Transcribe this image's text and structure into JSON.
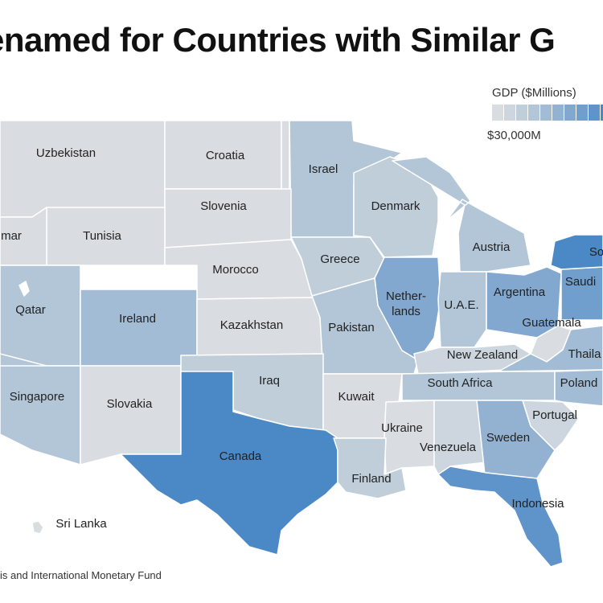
{
  "title": "enamed for Countries with Similar G",
  "legend": {
    "title": "GDP ($Millions)",
    "min_label": "$30,000M",
    "colors": [
      "#d9dde2",
      "#cdd6de",
      "#c0ceda",
      "#b2c6d8",
      "#a3bcd5",
      "#93b2d2",
      "#82a8d0",
      "#709ecd",
      "#5e94ca",
      "#4a88c6"
    ]
  },
  "source": "is and International Monetary Fund",
  "regions": [
    {
      "id": "wa",
      "country": "Uzbekistan",
      "level": 0
    },
    {
      "id": "mt",
      "country": "Croatia",
      "level": 0
    },
    {
      "id": "nd",
      "country": "",
      "level": 0
    },
    {
      "id": "mn",
      "country": "Israel",
      "level": 3
    },
    {
      "id": "wi",
      "country": "Denmark",
      "level": 2
    },
    {
      "id": "mi",
      "country": "Austria",
      "level": 3
    },
    {
      "id": "sd",
      "country": "Slovenia",
      "level": 0
    },
    {
      "id": "wy",
      "country": "Tunisia",
      "level": 0
    },
    {
      "id": "or",
      "country": "mar",
      "level": 0
    },
    {
      "id": "id",
      "country": "",
      "level": 0
    },
    {
      "id": "ne",
      "country": "Morocco",
      "level": 0
    },
    {
      "id": "ia",
      "country": "Greece",
      "level": 2
    },
    {
      "id": "il",
      "country": "Nether-\nlands",
      "level": 6
    },
    {
      "id": "in",
      "country": "U.A.E.",
      "level": 3
    },
    {
      "id": "oh",
      "country": "Argentina",
      "level": 6
    },
    {
      "id": "pa",
      "country": "Saudi",
      "level": 7
    },
    {
      "id": "ny",
      "country": "So",
      "level": 9
    },
    {
      "id": "nv",
      "country": "Qatar",
      "level": 3
    },
    {
      "id": "ca",
      "country": "",
      "level": 3
    },
    {
      "id": "ut",
      "country": "",
      "level": 2
    },
    {
      "id": "co",
      "country": "Ireland",
      "level": 4
    },
    {
      "id": "ks",
      "country": "Kazakhstan",
      "level": 0
    },
    {
      "id": "mo",
      "country": "Pakistan",
      "level": 3
    },
    {
      "id": "ky",
      "country": "New Zealand",
      "level": 1
    },
    {
      "id": "wv",
      "country": "Guatemala",
      "level": 0
    },
    {
      "id": "va",
      "country": "Thaila",
      "level": 4
    },
    {
      "id": "tn",
      "country": "South Africa",
      "level": 3
    },
    {
      "id": "nc",
      "country": "Poland",
      "level": 4
    },
    {
      "id": "az",
      "country": "Singapore",
      "level": 3
    },
    {
      "id": "nm",
      "country": "Slovakia",
      "level": 0
    },
    {
      "id": "ok",
      "country": "Iraq",
      "level": 2
    },
    {
      "id": "ar",
      "country": "Kuwait",
      "level": 0
    },
    {
      "id": "ms",
      "country": "Ukraine",
      "level": 0
    },
    {
      "id": "al",
      "country": "Venezuela",
      "level": 1
    },
    {
      "id": "ga",
      "country": "Sweden",
      "level": 5
    },
    {
      "id": "sc",
      "country": "Portugal",
      "level": 1
    },
    {
      "id": "tx",
      "country": "Canada",
      "level": 9
    },
    {
      "id": "la",
      "country": "Finland",
      "level": 2
    },
    {
      "id": "fl",
      "country": "Indonesia",
      "level": 8
    },
    {
      "id": "hi",
      "country": "Sri Lanka",
      "level": 0
    }
  ]
}
